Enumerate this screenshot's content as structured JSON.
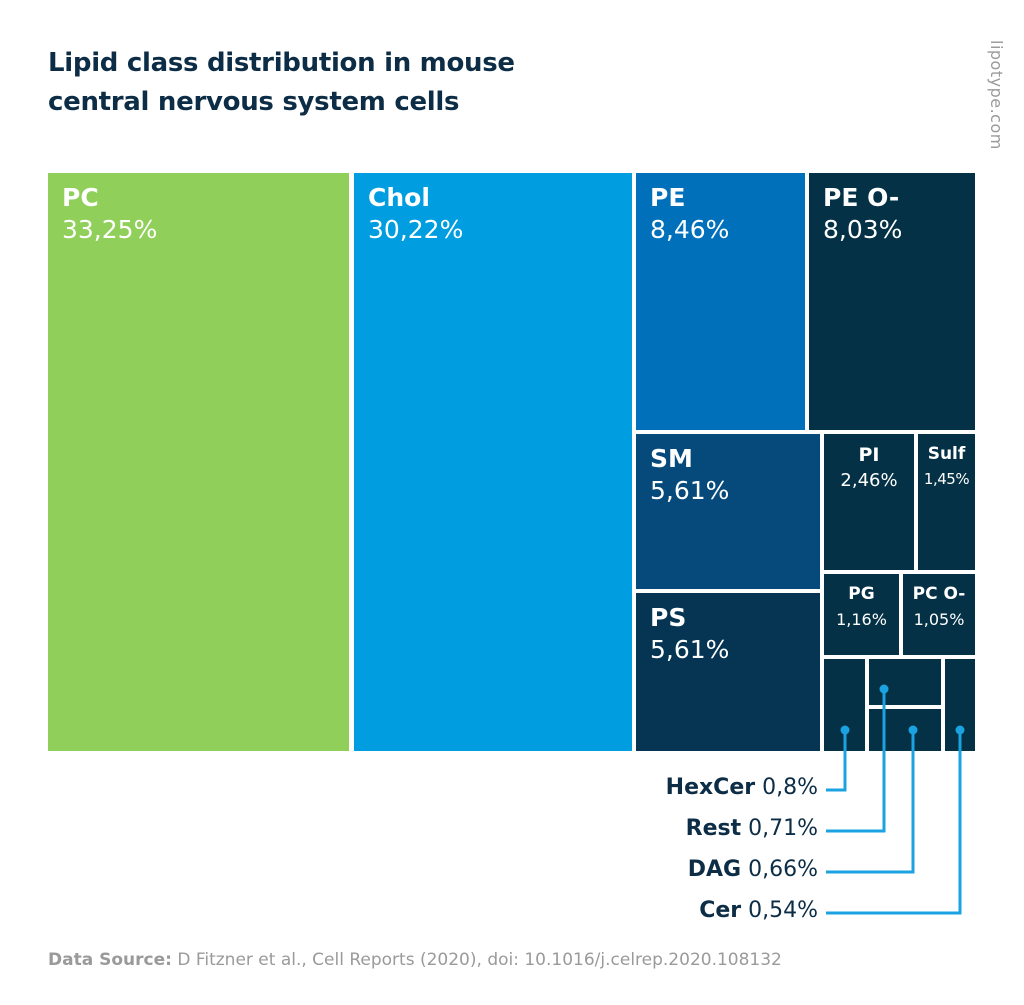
{
  "title": "Lipid class distribution in mouse central nervous system cells",
  "brand": "lipotype.com",
  "source_label": "Data Source:",
  "source_text": "D Fitzner et al., Cell Reports (2020), doi: 10.1016/j.celrep.2020.108132",
  "chart_data": {
    "type": "treemap",
    "title": "Lipid class distribution in mouse central nervous system cells",
    "items": [
      {
        "name": "PC",
        "label": "33,25%",
        "value": 33.25,
        "color": "#8fcf5a"
      },
      {
        "name": "Chol",
        "label": "30,22%",
        "value": 30.22,
        "color": "#009ee0"
      },
      {
        "name": "PE",
        "label": "8,46%",
        "value": 8.46,
        "color": "#0070bb"
      },
      {
        "name": "PE O-",
        "label": "8,03%",
        "value": 8.03,
        "color": "#043145"
      },
      {
        "name": "SM",
        "label": "5,61%",
        "value": 5.61,
        "color": "#064a7c"
      },
      {
        "name": "PS",
        "label": "5,61%",
        "value": 5.61,
        "color": "#053553"
      },
      {
        "name": "PI",
        "label": "2,46%",
        "value": 2.46,
        "color": "#043145"
      },
      {
        "name": "Sulf",
        "label": "1,45%",
        "value": 1.45,
        "color": "#043145"
      },
      {
        "name": "PG",
        "label": "1,16%",
        "value": 1.16,
        "color": "#043145"
      },
      {
        "name": "PC O-",
        "label": "1,05%",
        "value": 1.05,
        "color": "#043145"
      },
      {
        "name": "HexCer",
        "label": "0,8%",
        "value": 0.8,
        "color": "#043145"
      },
      {
        "name": "Rest",
        "label": "0,71%",
        "value": 0.71,
        "color": "#043145"
      },
      {
        "name": "DAG",
        "label": "0,66%",
        "value": 0.66,
        "color": "#043145"
      },
      {
        "name": "Cer",
        "label": "0,54%",
        "value": 0.54,
        "color": "#043145"
      }
    ]
  }
}
